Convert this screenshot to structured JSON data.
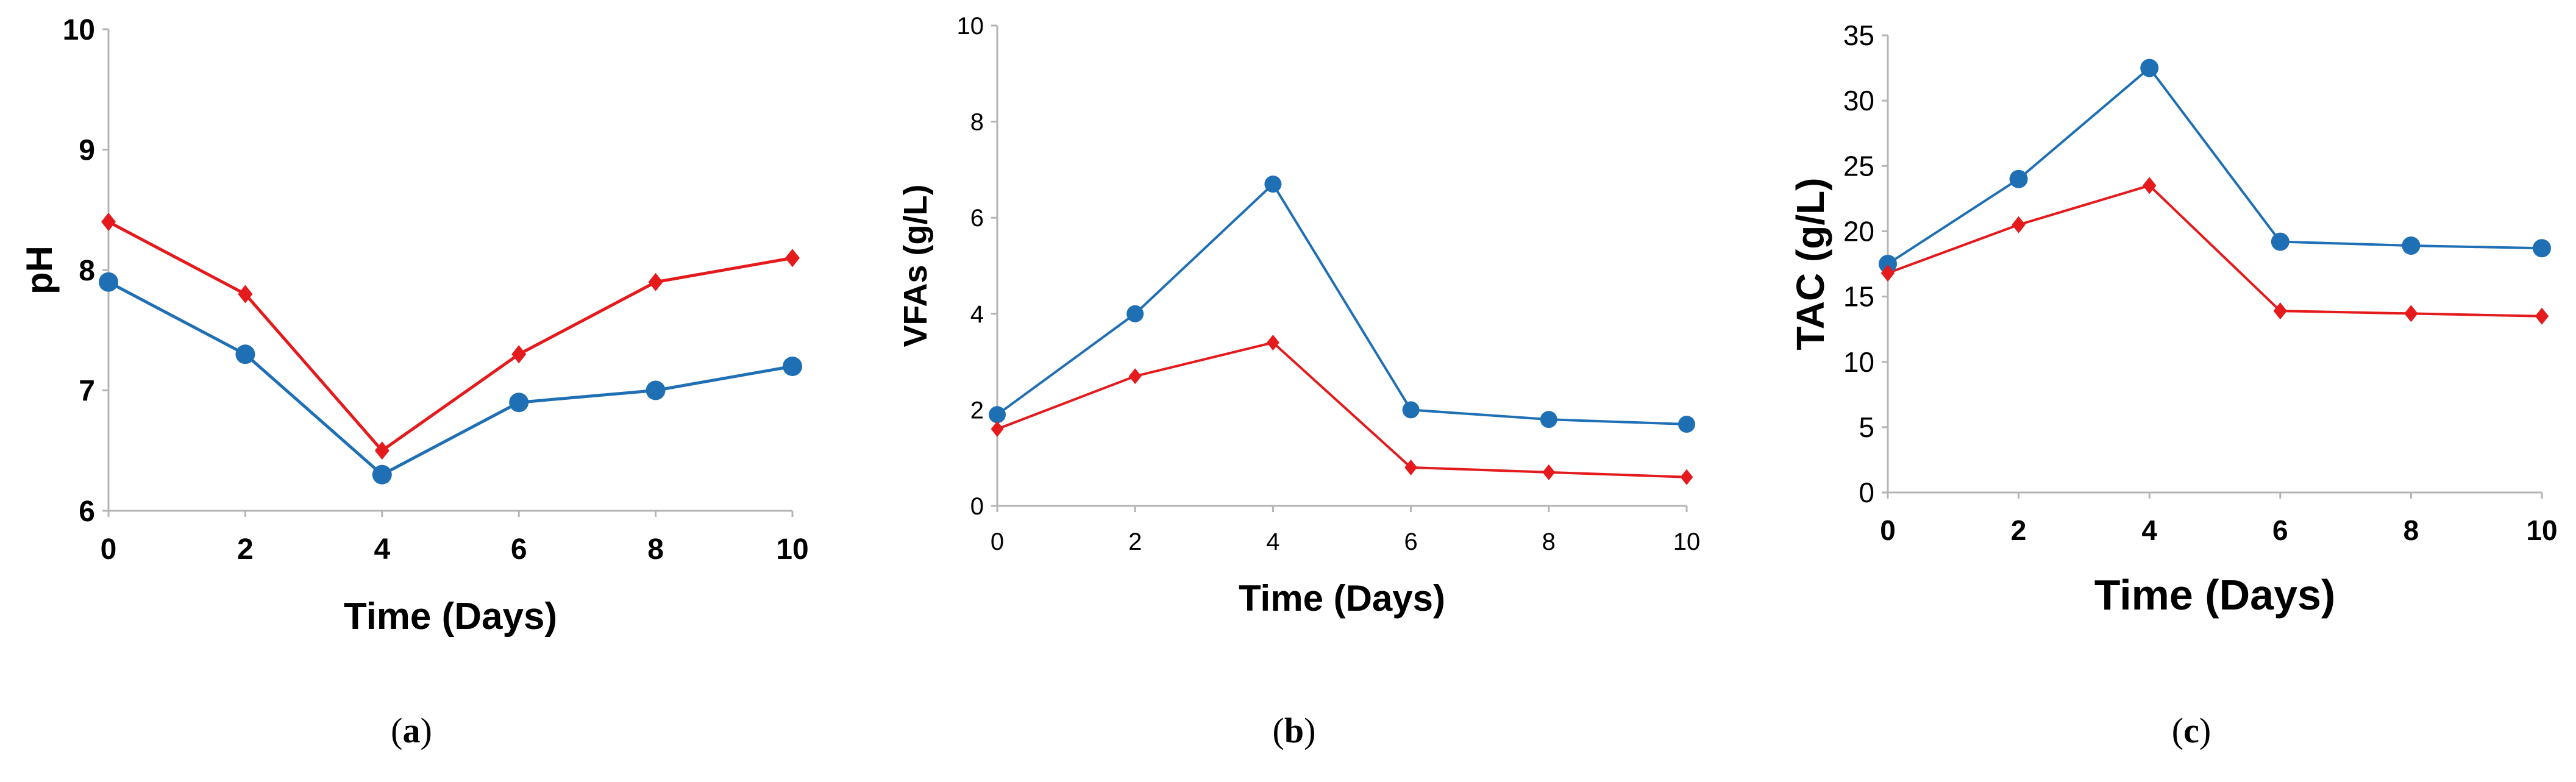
{
  "chart_data": [
    {
      "type": "line",
      "panel_label": "a",
      "caption_open": "(",
      "caption_close": ")",
      "title": "",
      "xlabel": "Time (Days)",
      "ylabel": "pH",
      "x": [
        0,
        2,
        4,
        6,
        8,
        10
      ],
      "xticks": [
        "0",
        "2",
        "4",
        "6",
        "8",
        "10"
      ],
      "yticks": [
        "6",
        "7",
        "8",
        "9",
        "10"
      ],
      "ylim": [
        6,
        10
      ],
      "xlim": [
        0,
        10
      ],
      "grid": false,
      "series": [
        {
          "name": "series-blue-circle",
          "color": "#1f6fb5",
          "marker": "circle",
          "values": [
            7.9,
            7.3,
            6.3,
            6.9,
            7.0,
            7.2
          ]
        },
        {
          "name": "series-red-diamond",
          "color": "#e41a1c",
          "marker": "diamond",
          "values": [
            8.4,
            7.8,
            6.5,
            7.3,
            7.9,
            8.1
          ]
        }
      ]
    },
    {
      "type": "line",
      "panel_label": "b",
      "caption_open": "(",
      "caption_close": ")",
      "title": "",
      "xlabel": "Time (Days)",
      "ylabel": "VFAs  (g/L)",
      "x": [
        0,
        2,
        4,
        6,
        8,
        10
      ],
      "xticks": [
        "0",
        "2",
        "4",
        "6",
        "8",
        "10"
      ],
      "yticks": [
        "0",
        "2",
        "4",
        "6",
        "8",
        "10"
      ],
      "ylim": [
        0,
        10
      ],
      "xlim": [
        0,
        10
      ],
      "grid": false,
      "series": [
        {
          "name": "series-blue-circle",
          "color": "#1f6fb5",
          "marker": "circle",
          "values": [
            1.9,
            4.0,
            6.7,
            2.0,
            1.8,
            1.7
          ]
        },
        {
          "name": "series-red-diamond",
          "color": "#e41a1c",
          "marker": "diamond",
          "values": [
            1.6,
            2.7,
            3.4,
            0.8,
            0.7,
            0.6
          ]
        }
      ]
    },
    {
      "type": "line",
      "panel_label": "c",
      "caption_open": "(",
      "caption_close": ")",
      "title": "",
      "xlabel": "Time (Days)",
      "ylabel": "TAC  (g/L)",
      "x": [
        0,
        2,
        4,
        6,
        8,
        10
      ],
      "xticks": [
        "0",
        "2",
        "4",
        "6",
        "8",
        "10"
      ],
      "yticks": [
        "0",
        "5",
        "10",
        "15",
        "20",
        "25",
        "30",
        "35"
      ],
      "ylim": [
        0,
        35
      ],
      "xlim": [
        0,
        10
      ],
      "grid": false,
      "series": [
        {
          "name": "series-blue-circle",
          "color": "#1f6fb5",
          "marker": "circle",
          "values": [
            17.5,
            24.0,
            32.5,
            19.2,
            18.9,
            18.7
          ]
        },
        {
          "name": "series-red-diamond",
          "color": "#e41a1c",
          "marker": "diamond",
          "values": [
            16.8,
            20.5,
            23.5,
            13.9,
            13.7,
            13.5
          ]
        }
      ]
    }
  ]
}
